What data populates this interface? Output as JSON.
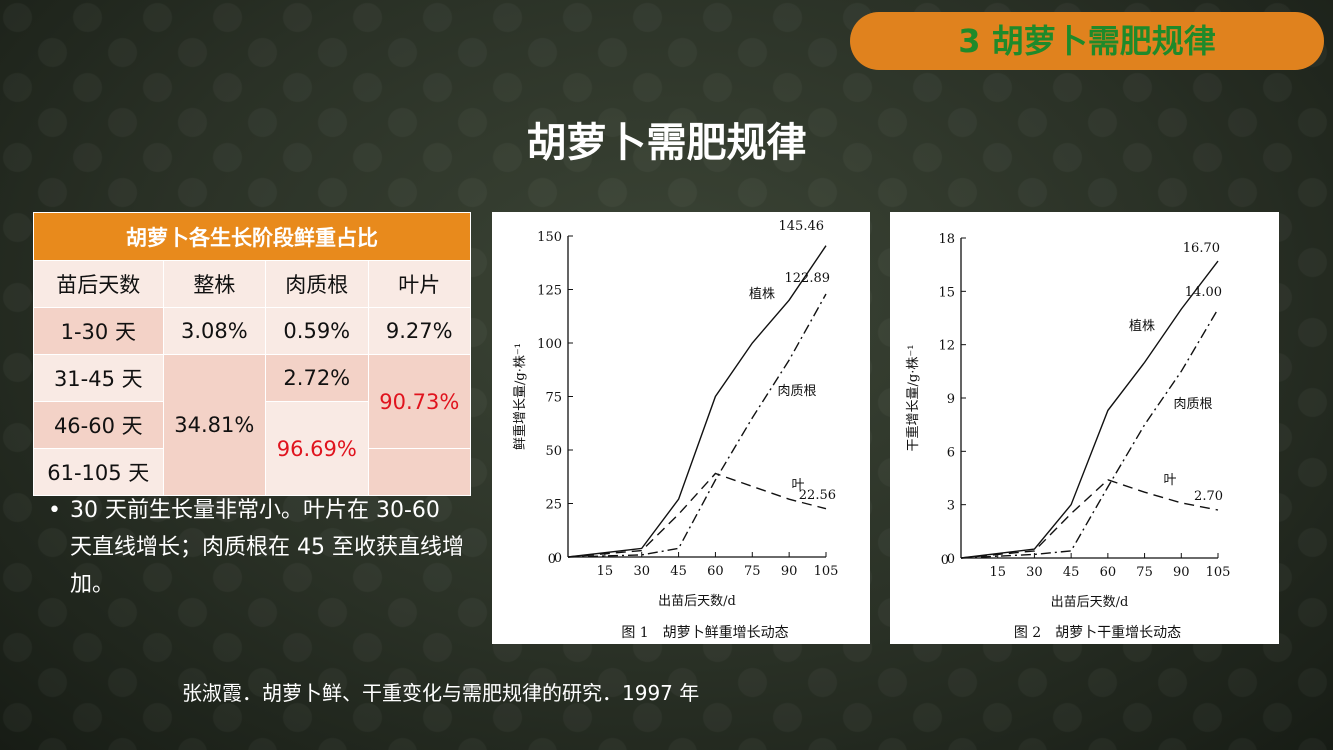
{
  "badge": "3 胡萝卜需肥规律",
  "title": "胡萝卜需肥规律",
  "table": {
    "caption": "胡萝卜各生长阶段鲜重占比",
    "headers": [
      "苗后天数",
      "整株",
      "肉质根",
      "叶片"
    ],
    "rows": [
      "1-30 天",
      "31-45 天",
      "46-60 天",
      "61-105 天"
    ],
    "r1": [
      "3.08%",
      "0.59%",
      "9.27%"
    ],
    "r2_root": "2.72%",
    "leaf_merged": "90.73%",
    "plant_merged": "34.81%",
    "root_merged": "96.69%"
  },
  "bullet": "30 天前生长量非常小。叶片在 30-60 天直线增长；肉质根在 45 至收获直线增加。",
  "citation": "张淑霞．胡萝卜鲜、干重变化与需肥规律的研究．1997 年",
  "chart_data": [
    {
      "type": "line",
      "title": "图 1　胡萝卜鲜重增长动态",
      "xlabel": "出苗后天数/d",
      "ylabel": "鲜重增长量/g·株⁻¹",
      "xlim": [
        0,
        105
      ],
      "ylim": [
        0,
        150
      ],
      "xticks": [
        15,
        30,
        45,
        60,
        75,
        90,
        105
      ],
      "yticks": [
        0,
        25,
        50,
        75,
        100,
        125,
        150
      ],
      "series": [
        {
          "name": "植株",
          "style": "solid",
          "x": [
            0,
            30,
            45,
            60,
            75,
            90,
            105
          ],
          "y": [
            0,
            4,
            27,
            75,
            100,
            120,
            145.46
          ]
        },
        {
          "name": "肉质根",
          "style": "dashdot",
          "x": [
            0,
            30,
            45,
            60,
            75,
            90,
            105
          ],
          "y": [
            0,
            1,
            4,
            36,
            65,
            92,
            122.89
          ]
        },
        {
          "name": "叶",
          "style": "dashed",
          "x": [
            0,
            30,
            45,
            60,
            75,
            90,
            105
          ],
          "y": [
            0,
            3,
            20,
            39,
            33,
            27,
            22.56
          ]
        }
      ],
      "end_labels": [
        "145.46",
        "122.89",
        "22.56"
      ]
    },
    {
      "type": "line",
      "title": "图 2　胡萝卜干重增长动态",
      "xlabel": "出苗后天数/d",
      "ylabel": "干重增长量/g·株⁻¹",
      "xlim": [
        0,
        105
      ],
      "ylim": [
        0,
        18
      ],
      "xticks": [
        15,
        30,
        45,
        60,
        75,
        90,
        105
      ],
      "yticks": [
        0,
        3,
        6,
        9,
        12,
        15,
        18
      ],
      "series": [
        {
          "name": "植株",
          "style": "solid",
          "x": [
            0,
            30,
            45,
            60,
            75,
            90,
            105
          ],
          "y": [
            0,
            0.5,
            3,
            8.3,
            11,
            14,
            16.7
          ]
        },
        {
          "name": "肉质根",
          "style": "dashdot",
          "x": [
            0,
            30,
            45,
            60,
            75,
            90,
            105
          ],
          "y": [
            0,
            0.2,
            0.4,
            4,
            7.5,
            10.5,
            14.0
          ]
        },
        {
          "name": "叶",
          "style": "dashed",
          "x": [
            0,
            30,
            45,
            60,
            75,
            90,
            105
          ],
          "y": [
            0,
            0.4,
            2.5,
            4.4,
            3.7,
            3.1,
            2.7
          ]
        }
      ],
      "end_labels": [
        "16.70",
        "14.00",
        "2.70"
      ]
    }
  ]
}
